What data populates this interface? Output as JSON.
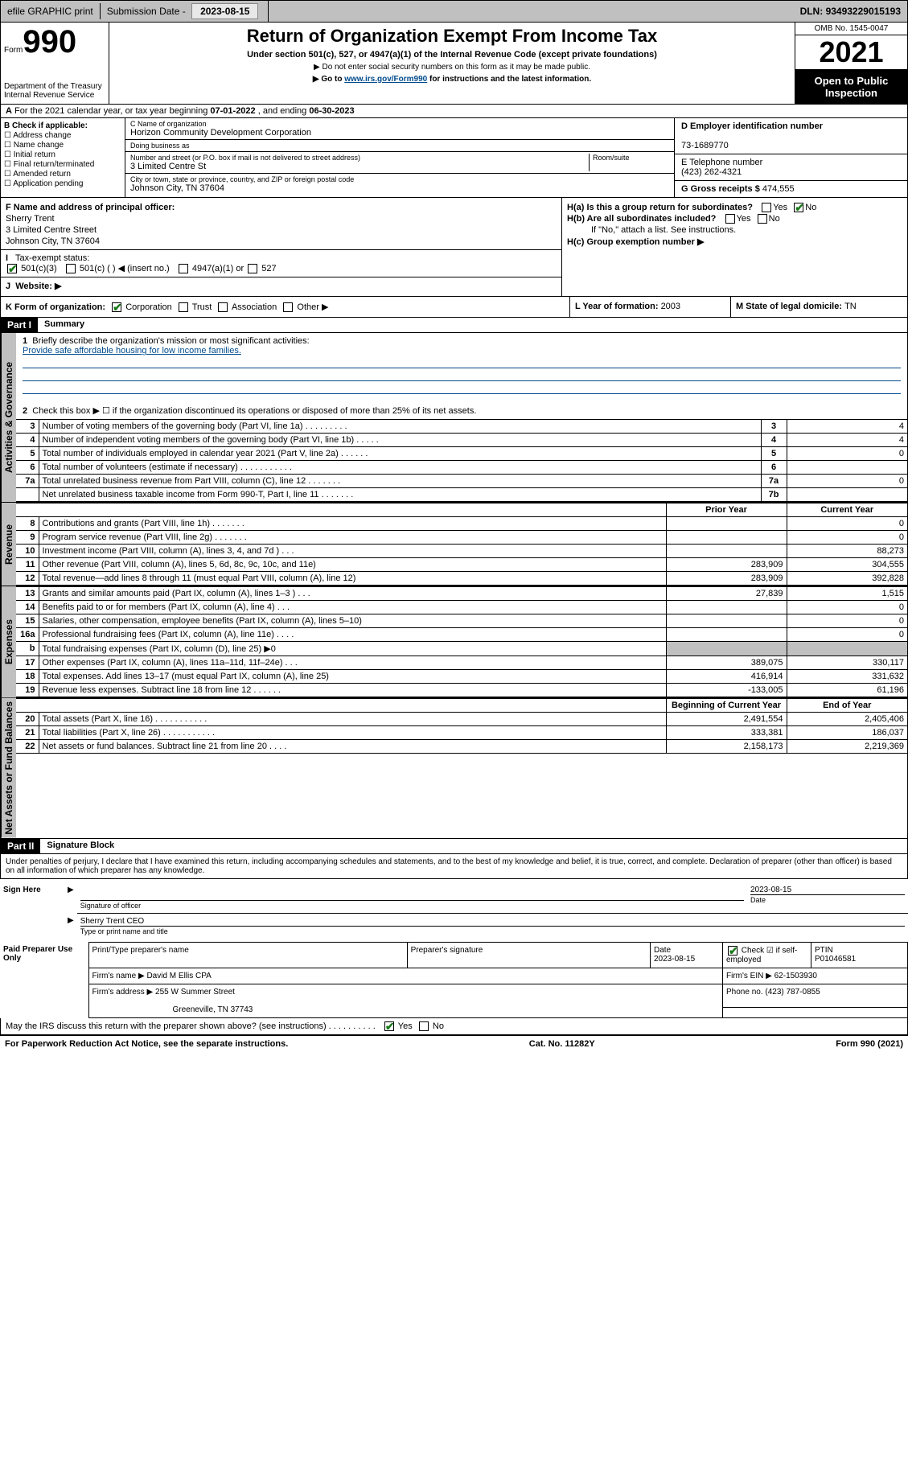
{
  "topbar": {
    "efile": "efile GRAPHIC print",
    "sub_label": "Submission Date - ",
    "sub_date": "2023-08-15",
    "dln_label": "DLN: ",
    "dln": "93493229015193"
  },
  "header": {
    "form_word": "Form",
    "form_num": "990",
    "dept": "Department of the Treasury",
    "irs": "Internal Revenue Service",
    "title": "Return of Organization Exempt From Income Tax",
    "subtitle": "Under section 501(c), 527, or 4947(a)(1) of the Internal Revenue Code (except private foundations)",
    "note1": "▶ Do not enter social security numbers on this form as it may be made public.",
    "note2_pre": "▶ Go to ",
    "note2_link": "www.irs.gov/Form990",
    "note2_post": " for instructions and the latest information.",
    "omb": "OMB No. 1545-0047",
    "year": "2021",
    "inspect1": "Open to Public",
    "inspect2": "Inspection"
  },
  "row_a": {
    "label": "A",
    "text_pre": "For the 2021 calendar year, or tax year beginning ",
    "begin": "07-01-2022",
    "text_mid": " , and ending ",
    "end": "06-30-2023"
  },
  "sec_b": {
    "label": "B Check if applicable:",
    "opts": [
      "Address change",
      "Name change",
      "Initial return",
      "Final return/terminated",
      "Amended return",
      "Application pending"
    ]
  },
  "sec_c": {
    "name_label": "C Name of organization",
    "name": "Horizon Community Development Corporation",
    "dba_label": "Doing business as",
    "dba": "",
    "street_label": "Number and street (or P.O. box if mail is not delivered to street address)",
    "room_label": "Room/suite",
    "street": "3 Limited Centre St",
    "city_label": "City or town, state or province, country, and ZIP or foreign postal code",
    "city": "Johnson City, TN  37604"
  },
  "sec_d": {
    "label": "D Employer identification number",
    "val": "73-1689770"
  },
  "sec_e": {
    "label": "E Telephone number",
    "val": "(423) 262-4321"
  },
  "sec_g": {
    "label": "G Gross receipts $ ",
    "val": "474,555"
  },
  "sec_f": {
    "label": "F  Name and address of principal officer:",
    "name": "Sherry Trent",
    "addr1": "3 Limited Centre Street",
    "addr2": "Johnson City, TN  37604"
  },
  "sec_h": {
    "ha": "H(a)  Is this a group return for subordinates?",
    "hb": "H(b)  Are all subordinates included?",
    "hb_note": "If \"No,\" attach a list. See instructions.",
    "hc": "H(c)  Group exemption number ▶",
    "yes": "Yes",
    "no": "No"
  },
  "sec_i": {
    "label": "I",
    "tax": "Tax-exempt status:",
    "o1": "501(c)(3)",
    "o2": "501(c) (  ) ◀ (insert no.)",
    "o3": "4947(a)(1) or",
    "o4": "527"
  },
  "sec_j": {
    "label": "J",
    "text": "Website: ▶"
  },
  "row_k": {
    "k": "K Form of organization:",
    "opts": [
      "Corporation",
      "Trust",
      "Association",
      "Other ▶"
    ],
    "l": "L Year of formation: ",
    "l_val": "2003",
    "m": "M State of legal domicile: ",
    "m_val": "TN"
  },
  "part1": {
    "hdr": "Part I",
    "title": "Summary"
  },
  "tabs": {
    "gov": "Activities & Governance",
    "rev": "Revenue",
    "exp": "Expenses",
    "net": "Net Assets or Fund Balances"
  },
  "summary": {
    "q1": "Briefly describe the organization's mission or most significant activities:",
    "mission": "Provide safe affordable housing for low income families.",
    "q2": "Check this box ▶ ☐  if the organization discontinued its operations or disposed of more than 25% of its net assets.",
    "rows_gov": [
      {
        "n": "3",
        "d": "Number of voting members of the governing body (Part VI, line 1a)   .    .   .   .   .   .   .   .   .",
        "b": "3",
        "v": "4"
      },
      {
        "n": "4",
        "d": "Number of independent voting members of the governing body (Part VI, line 1b)  .    .    .    .    .",
        "b": "4",
        "v": "4"
      },
      {
        "n": "5",
        "d": "Total number of individuals employed in calendar year 2021 (Part V, line 2a)   .    .    .    .    .    .",
        "b": "5",
        "v": "0"
      },
      {
        "n": "6",
        "d": "Total number of volunteers (estimate if necessary)    .    .    .    .    .    .    .    .    .    .    .",
        "b": "6",
        "v": ""
      },
      {
        "n": "7a",
        "d": "Total unrelated business revenue from Part VIII, column (C), line 12   .    .    .    .    .    .    .",
        "b": "7a",
        "v": "0"
      },
      {
        "n": "",
        "d": "Net unrelated business taxable income from Form 990-T, Part I, line 11   .    .    .    .    .    .    .",
        "b": "7b",
        "v": ""
      }
    ],
    "col_prior": "Prior Year",
    "col_curr": "Current Year",
    "rows_rev": [
      {
        "n": "8",
        "d": "Contributions and grants (Part VIII, line 1h)   .    .    .    .    .    .    .",
        "p": "",
        "c": "0"
      },
      {
        "n": "9",
        "d": "Program service revenue (Part VIII, line 2g)   .    .    .    .    .    .    .",
        "p": "",
        "c": "0"
      },
      {
        "n": "10",
        "d": "Investment income (Part VIII, column (A), lines 3, 4, and 7d )    .    .    .",
        "p": "",
        "c": "88,273"
      },
      {
        "n": "11",
        "d": "Other revenue (Part VIII, column (A), lines 5, 6d, 8c, 9c, 10c, and 11e)",
        "p": "283,909",
        "c": "304,555"
      },
      {
        "n": "12",
        "d": "Total revenue—add lines 8 through 11 (must equal Part VIII, column (A), line 12)",
        "p": "283,909",
        "c": "392,828"
      }
    ],
    "rows_exp": [
      {
        "n": "13",
        "d": "Grants and similar amounts paid (Part IX, column (A), lines 1–3 )    .    .    .",
        "p": "27,839",
        "c": "1,515"
      },
      {
        "n": "14",
        "d": "Benefits paid to or for members (Part IX, column (A), line 4)   .    .    .",
        "p": "",
        "c": "0"
      },
      {
        "n": "15",
        "d": "Salaries, other compensation, employee benefits (Part IX, column (A), lines 5–10)",
        "p": "",
        "c": "0"
      },
      {
        "n": "16a",
        "d": "Professional fundraising fees (Part IX, column (A), line 11e)   .    .    .    .",
        "p": "",
        "c": "0"
      },
      {
        "n": "b",
        "d": "Total fundraising expenses (Part IX, column (D), line 25) ▶0",
        "p": "grey",
        "c": "grey"
      },
      {
        "n": "17",
        "d": "Other expenses (Part IX, column (A), lines 11a–11d, 11f–24e)   .    .    .",
        "p": "389,075",
        "c": "330,117"
      },
      {
        "n": "18",
        "d": "Total expenses. Add lines 13–17 (must equal Part IX, column (A), line 25)",
        "p": "416,914",
        "c": "331,632"
      },
      {
        "n": "19",
        "d": "Revenue less expenses. Subtract line 18 from line 12   .    .    .    .    .    .",
        "p": "-133,005",
        "c": "61,196"
      }
    ],
    "col_begin": "Beginning of Current Year",
    "col_end": "End of Year",
    "rows_net": [
      {
        "n": "20",
        "d": "Total assets (Part X, line 16)   .    .    .    .    .    .    .    .    .    .    .",
        "p": "2,491,554",
        "c": "2,405,406"
      },
      {
        "n": "21",
        "d": "Total liabilities (Part X, line 26)   .    .    .    .    .    .    .    .    .    .    .",
        "p": "333,381",
        "c": "186,037"
      },
      {
        "n": "22",
        "d": "Net assets or fund balances. Subtract line 21 from line 20   .    .    .    .",
        "p": "2,158,173",
        "c": "2,219,369"
      }
    ]
  },
  "part2": {
    "hdr": "Part II",
    "title": "Signature Block"
  },
  "sig": {
    "decl": "Under penalties of perjury, I declare that I have examined this return, including accompanying schedules and statements, and to the best of my knowledge and belief, it is true, correct, and complete. Declaration of preparer (other than officer) is based on all information of which preparer has any knowledge.",
    "sign_here": "Sign Here",
    "sig_officer": "Signature of officer",
    "sig_date": "2023-08-15",
    "date_lbl": "Date",
    "name": "Sherry Trent CEO",
    "name_lbl": "Type or print name and title",
    "paid": "Paid Preparer Use Only",
    "h1": "Print/Type preparer's name",
    "h2": "Preparer's signature",
    "h3": "Date",
    "h3v": "2023-08-15",
    "h4": "Check ☑ if self-employed",
    "h5": "PTIN",
    "h5v": "P01046581",
    "firm_name_lbl": "Firm's name    ▶ ",
    "firm_name": "David M Ellis CPA",
    "firm_ein_lbl": "Firm's EIN ▶ ",
    "firm_ein": "62-1503930",
    "firm_addr_lbl": "Firm's address ▶ ",
    "firm_addr": "255 W Summer Street",
    "firm_addr2": "Greeneville, TN  37743",
    "phone_lbl": "Phone no. ",
    "phone": "(423) 787-0855",
    "discuss": "May the IRS discuss this return with the preparer shown above? (see instructions)   .    .    .    .    .    .    .    .    .    .",
    "yes": "Yes",
    "no": "No"
  },
  "footer": {
    "left": "For Paperwork Reduction Act Notice, see the separate instructions.",
    "mid": "Cat. No. 11282Y",
    "right": "Form 990 (2021)"
  },
  "colors": {
    "topbar_bg": "#c0c0c0",
    "link": "#004b8d",
    "check": "#1a7a1a"
  }
}
